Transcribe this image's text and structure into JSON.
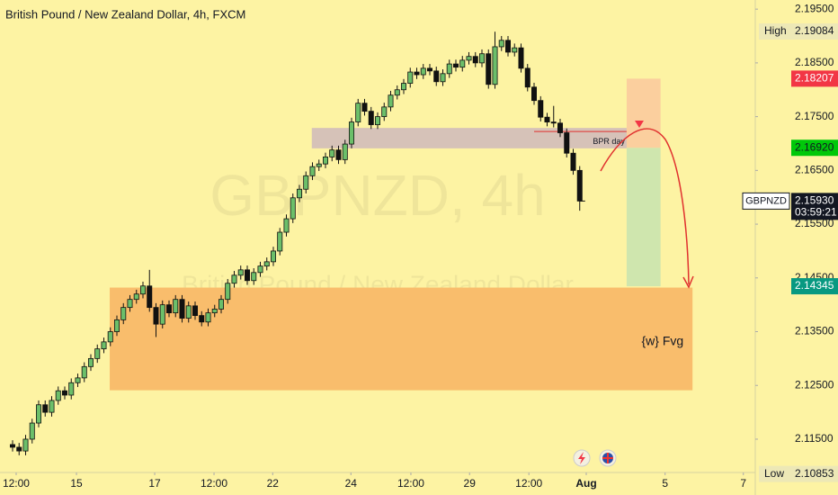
{
  "chart_data": {
    "type": "candlestick",
    "title": "British Pound / New Zealand Dollar, 4h, FXCM",
    "watermark_symbol": "GBPNZD, 4h",
    "watermark_name": "British Pound / New Zealand Dollar",
    "background": "#fdf3a3",
    "up_color": "#6cbf6a",
    "down_color": "#111111",
    "xlim": [
      -1.93,
      113.93
    ],
    "xticks": [
      {
        "value": 0.55,
        "label": "12:00"
      },
      {
        "value": 9.8,
        "label": "15"
      },
      {
        "value": 21.8,
        "label": "17"
      },
      {
        "value": 30.9,
        "label": "12:00"
      },
      {
        "value": 39.9,
        "label": "22"
      },
      {
        "value": 51.9,
        "label": "24"
      },
      {
        "value": 61.1,
        "label": "12:00"
      },
      {
        "value": 70.1,
        "label": "29"
      },
      {
        "value": 79.2,
        "label": "12:00"
      },
      {
        "value": 88.0,
        "label": "Aug"
      },
      {
        "value": 100.1,
        "label": "5"
      },
      {
        "value": 112.1,
        "label": "7"
      }
    ],
    "ylim": [
      2.1088,
      2.1967
    ],
    "yticks": [
      {
        "value": 2.195,
        "label": "2.19500"
      },
      {
        "value": 2.185,
        "label": "2.18500"
      },
      {
        "value": 2.175,
        "label": "2.17500"
      },
      {
        "value": 2.165,
        "label": "2.16500"
      },
      {
        "value": 2.155,
        "label": "2.15500"
      },
      {
        "value": 2.145,
        "label": "2.14500"
      },
      {
        "value": 2.135,
        "label": "2.13500"
      },
      {
        "value": 2.125,
        "label": "2.12500"
      },
      {
        "value": 2.115,
        "label": "2.11500"
      }
    ],
    "open": [
      2.114,
      2.1135,
      2.1128,
      2.115,
      2.118,
      2.1214,
      2.12,
      2.1222,
      2.124,
      2.1232,
      2.1255,
      2.1264,
      2.1285,
      2.13,
      2.1318,
      2.1331,
      2.135,
      2.1372,
      2.1395,
      2.141,
      2.142,
      2.1435,
      2.1395,
      2.1364,
      2.14,
      2.1385,
      2.141,
      2.1375,
      2.1398,
      2.138,
      2.1368,
      2.1385,
      2.1392,
      2.141,
      2.144,
      2.1455,
      2.1465,
      2.1445,
      2.146,
      2.1472,
      2.148,
      2.15,
      2.1535,
      2.156,
      2.1599,
      2.1615,
      2.164,
      2.1657,
      2.1662,
      2.1675,
      2.1688,
      2.167,
      2.1699,
      2.174,
      2.1775,
      2.176,
      2.1735,
      2.175,
      2.1768,
      2.179,
      2.18,
      2.1812,
      2.1833,
      2.1828,
      2.184,
      2.1835,
      2.1815,
      2.183,
      2.1848,
      2.1842,
      2.1855,
      2.1862,
      2.185,
      2.1867,
      2.181,
      2.188,
      2.1892,
      2.187,
      2.1878,
      2.184,
      2.1805,
      2.178,
      2.1749,
      2.174,
      2.1738,
      2.172,
      2.1682,
      2.165
    ],
    "high": [
      2.1148,
      2.1143,
      2.1158,
      2.1188,
      2.1222,
      2.1222,
      2.123,
      2.1248,
      2.1248,
      2.1263,
      2.1272,
      2.1293,
      2.1308,
      2.1326,
      2.1339,
      2.1358,
      2.138,
      2.1403,
      2.1418,
      2.1428,
      2.1443,
      2.1465,
      2.1403,
      2.1408,
      2.1408,
      2.1418,
      2.1418,
      2.1406,
      2.1406,
      2.1388,
      2.1393,
      2.14,
      2.1418,
      2.1448,
      2.1463,
      2.1473,
      2.1473,
      2.1468,
      2.148,
      2.1488,
      2.1508,
      2.1543,
      2.1568,
      2.1607,
      2.1623,
      2.1648,
      2.1665,
      2.167,
      2.1683,
      2.1696,
      2.1696,
      2.1707,
      2.1748,
      2.1783,
      2.1783,
      2.1768,
      2.1758,
      2.1776,
      2.1798,
      2.1808,
      2.182,
      2.1841,
      2.1841,
      2.1848,
      2.1848,
      2.1843,
      2.1838,
      2.1856,
      2.1856,
      2.1863,
      2.187,
      2.187,
      2.1875,
      2.1875,
      2.1908,
      2.19,
      2.19,
      2.1886,
      2.1886,
      2.1848,
      2.1813,
      2.1788,
      2.1757,
      2.177,
      2.1746,
      2.1728,
      2.169,
      2.1658
    ],
    "low": [
      2.1127,
      2.112,
      2.112,
      2.1142,
      2.1172,
      2.1192,
      2.1192,
      2.1214,
      2.1224,
      2.1224,
      2.1247,
      2.1256,
      2.1277,
      2.1292,
      2.131,
      2.1323,
      2.1342,
      2.1364,
      2.1387,
      2.1402,
      2.1412,
      2.1387,
      2.134,
      2.1356,
      2.1377,
      2.1377,
      2.1367,
      2.1367,
      2.1372,
      2.136,
      2.136,
      2.1377,
      2.1384,
      2.1402,
      2.1432,
      2.1447,
      2.1437,
      2.1437,
      2.1452,
      2.1464,
      2.1472,
      2.1492,
      2.1527,
      2.1552,
      2.1591,
      2.1607,
      2.1632,
      2.1649,
      2.1654,
      2.1667,
      2.1662,
      2.1662,
      2.1691,
      2.1732,
      2.1752,
      2.1727,
      2.1727,
      2.1742,
      2.176,
      2.1782,
      2.1792,
      2.1804,
      2.182,
      2.182,
      2.1827,
      2.1807,
      2.1807,
      2.1822,
      2.1834,
      2.1834,
      2.1847,
      2.1842,
      2.1842,
      2.1802,
      2.1802,
      2.1872,
      2.1862,
      2.1862,
      2.1832,
      2.1797,
      2.1772,
      2.1741,
      2.1732,
      2.173,
      2.1712,
      2.1674,
      2.1642,
      2.1575
    ],
    "close": [
      2.1135,
      2.1128,
      2.115,
      2.118,
      2.1214,
      2.12,
      2.1222,
      2.124,
      2.1232,
      2.1255,
      2.1264,
      2.1285,
      2.13,
      2.1318,
      2.1331,
      2.135,
      2.1372,
      2.1395,
      2.141,
      2.142,
      2.1435,
      2.1395,
      2.1364,
      2.14,
      2.1385,
      2.141,
      2.1375,
      2.1398,
      2.138,
      2.1368,
      2.1385,
      2.1392,
      2.141,
      2.144,
      2.1455,
      2.1465,
      2.1445,
      2.146,
      2.1472,
      2.148,
      2.15,
      2.1535,
      2.156,
      2.1599,
      2.1615,
      2.164,
      2.1657,
      2.1662,
      2.1675,
      2.1688,
      2.167,
      2.1699,
      2.174,
      2.1775,
      2.176,
      2.1735,
      2.175,
      2.1768,
      2.179,
      2.18,
      2.1812,
      2.1833,
      2.1828,
      2.184,
      2.1835,
      2.1815,
      2.183,
      2.1848,
      2.1842,
      2.1855,
      2.1862,
      2.185,
      2.1867,
      2.181,
      2.188,
      2.1892,
      2.187,
      2.1878,
      2.184,
      2.1805,
      2.178,
      2.1749,
      2.174,
      2.1738,
      2.172,
      2.1682,
      2.165,
      2.1593
    ],
    "zones": [
      {
        "name": "{w} Fvg",
        "x0": 14.9,
        "x1": 104.3,
        "top": 2.1432,
        "bottom": 2.1241,
        "color": "#f9bd6c"
      },
      {
        "name": "BPR day",
        "x0": 45.9,
        "x1": 94.2,
        "top": 2.1729,
        "bottom": 2.1691,
        "color": "#d6c2b8"
      }
    ],
    "position": {
      "x0": 94.2,
      "x1": 99.4,
      "entry": 2.1692,
      "stop": 2.18207,
      "target": 2.14345,
      "stop_color": "#fbcf9e",
      "target_color": "#cfe6ae"
    },
    "price_tags": [
      {
        "name": "High",
        "value": 2.19084,
        "value_label": "2.19084",
        "color": "#ede8b6",
        "text_color": "#131722"
      },
      {
        "value": 2.18207,
        "value_label": "2.18207",
        "color": "#f23645",
        "text_color": "#ffffff"
      },
      {
        "value": 2.1692,
        "value_label": "2.16920",
        "color": "#00c80a",
        "text_color": "#131722"
      },
      {
        "name": "GBPNZD",
        "value": 2.1593,
        "value_label": "2.15930",
        "countdown": "03:59:21",
        "color": "#131722",
        "text_color": "#ffffff"
      },
      {
        "value": 2.14345,
        "value_label": "2.14345",
        "color": "#089981",
        "text_color": "#ffffff"
      },
      {
        "name": "Low",
        "value": 2.10853,
        "value_label": "2.10853",
        "color": "#ede8b6",
        "text_color": "#131722"
      }
    ]
  }
}
